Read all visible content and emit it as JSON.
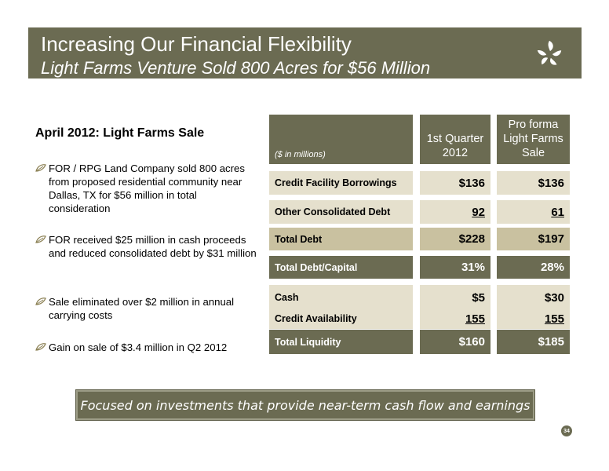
{
  "header": {
    "title": "Increasing Our Financial Flexibility",
    "subtitle": "Light Farms Venture Sold 800 Acres for $56 Million"
  },
  "left": {
    "heading": "April 2012: Light Farms Sale",
    "bullets": [
      "FOR / RPG Land Company sold 800 acres from proposed residential community near Dallas, TX for $56 million in total consideration",
      "FOR received $25 million in cash proceeds and reduced consolidated debt by $31 million",
      "Sale eliminated over $2 million in annual carrying costs",
      "Gain on sale of $3.4 million in Q2 2012"
    ]
  },
  "table": {
    "note": "($ in millions)",
    "col1_line1": "1st Quarter",
    "col1_line2": "2012",
    "col2_line1": "Pro forma",
    "col2_line2": "Light Farms",
    "col2_line3": "Sale",
    "rows": [
      {
        "label": "Credit Facility Borrowings",
        "v1": "$136",
        "v2": "$136"
      },
      {
        "label": "Other Consolidated Debt",
        "v1": "92",
        "v2": "61"
      },
      {
        "label": "Total Debt",
        "v1": "$228",
        "v2": "$197"
      },
      {
        "label": "Total Debt/Capital",
        "v1": "31%",
        "v2": "28%"
      },
      {
        "label": "Cash",
        "v1": "$5",
        "v2": "$30"
      },
      {
        "label": "Credit Availability",
        "v1": "155",
        "v2": "155"
      },
      {
        "label": "Total Liquidity",
        "v1": "$160",
        "v2": "$185"
      }
    ]
  },
  "banner": "Focused on investments that provide near-term cash flow and earnings",
  "page_number": "34",
  "colors": {
    "brand": "#6b6b52",
    "light": "#e5e0cd",
    "mid": "#c9c1a0"
  },
  "icons": {
    "logo": "leaf-cluster-logo",
    "bullet": "leaf-bullet-icon"
  }
}
